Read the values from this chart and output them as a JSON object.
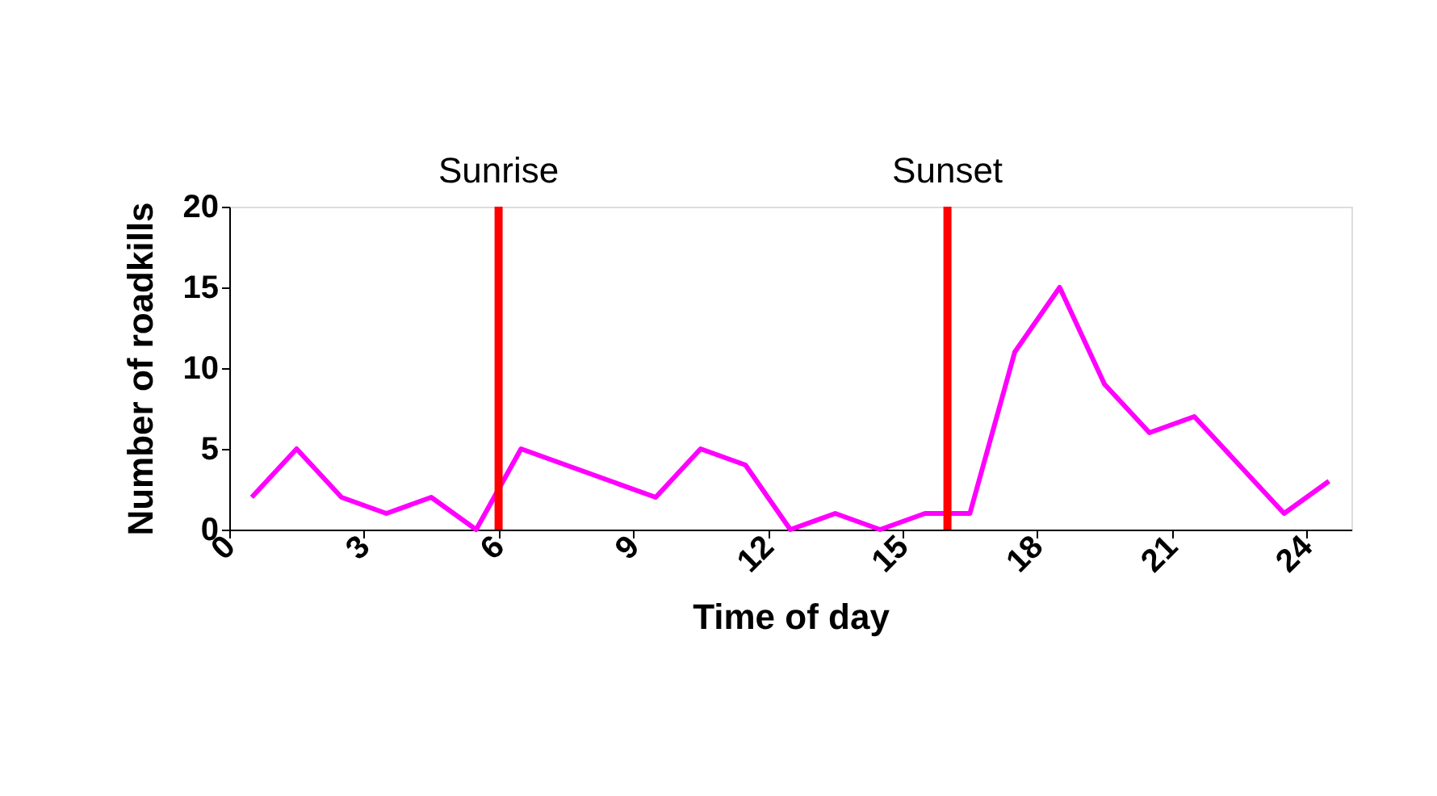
{
  "chart_data": {
    "type": "line",
    "xlabel": "Time of day",
    "ylabel": "Number of roadkills",
    "x": [
      0.5,
      1.5,
      2.5,
      3.5,
      4.5,
      5.5,
      6.5,
      7.5,
      8.5,
      9.5,
      10.5,
      11.5,
      12.5,
      13.5,
      14.5,
      15.5,
      16.5,
      17.5,
      18.5,
      19.5,
      20.5,
      21.5,
      22.5,
      23.5,
      24.5
    ],
    "series": [
      {
        "color": "#ff00ff",
        "values": [
          2,
          5,
          2,
          1,
          2,
          0,
          5,
          4,
          3,
          2,
          5,
          4,
          0,
          1,
          0,
          1,
          1,
          11,
          15,
          9,
          6,
          7,
          4,
          1,
          3
        ]
      }
    ],
    "xlim": [
      0,
      25
    ],
    "xticks": [
      0,
      3,
      6,
      9,
      12,
      15,
      18,
      21,
      24
    ],
    "ylim": [
      0,
      20
    ],
    "yticks": [
      0,
      5,
      10,
      15,
      20
    ],
    "ref_lines": [
      {
        "axis": "x",
        "value": 6,
        "label": "Sunrise",
        "color": "#ff0000"
      },
      {
        "axis": "x",
        "value": 16,
        "label": "Sunset",
        "color": "#ff0000"
      }
    ],
    "grid": false,
    "marker": "none",
    "line_style": "solid"
  }
}
